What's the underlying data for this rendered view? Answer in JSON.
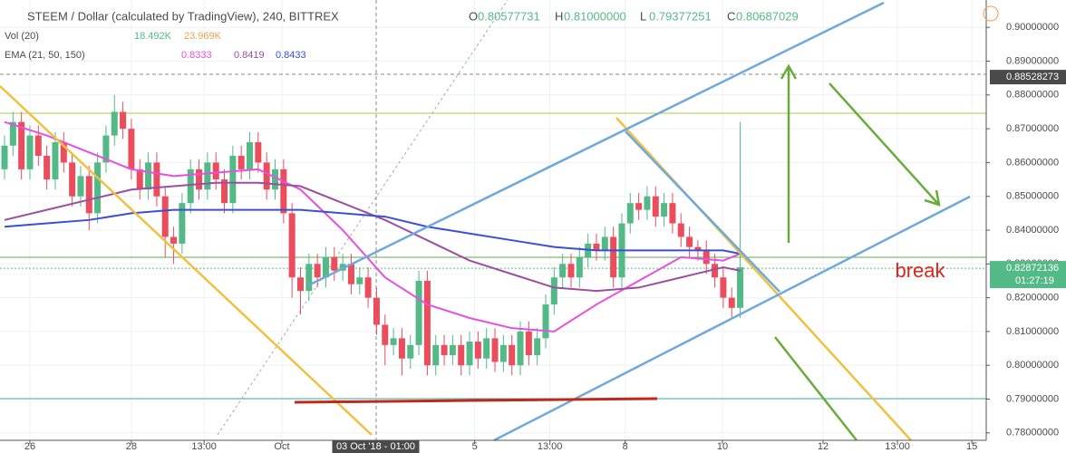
{
  "chart_data": {
    "type": "candlestick",
    "title": "STEEM / Dollar (calculated by TradingView), 240, BITTREX",
    "ohlc_labels": [
      {
        "key": "O",
        "value": "0.80577731"
      },
      {
        "key": "H",
        "value": "0.81000000"
      },
      {
        "key": "L",
        "value": "0.79377251"
      },
      {
        "key": "C",
        "value": "0.80687029"
      }
    ],
    "volume_legend": {
      "label": "Vol (20)",
      "values": [
        "18.492K",
        "23.969K"
      ],
      "colors": [
        "#53b987",
        "#f0a04b"
      ]
    },
    "ema_legend": {
      "label": "EMA (21, 50, 150)",
      "values": [
        "0.8333",
        "0.8419",
        "0.8433"
      ]
    },
    "up_color": "#53b987",
    "down_color": "#eb4d5c",
    "ohlc": [
      [
        0.858,
        0.868,
        0.855,
        0.865
      ],
      [
        0.865,
        0.875,
        0.862,
        0.872
      ],
      [
        0.872,
        0.875,
        0.855,
        0.858
      ],
      [
        0.858,
        0.871,
        0.855,
        0.868
      ],
      [
        0.868,
        0.871,
        0.859,
        0.862
      ],
      [
        0.862,
        0.865,
        0.852,
        0.855
      ],
      [
        0.855,
        0.869,
        0.852,
        0.866
      ],
      [
        0.866,
        0.869,
        0.857,
        0.86
      ],
      [
        0.86,
        0.863,
        0.847,
        0.85
      ],
      [
        0.85,
        0.859,
        0.847,
        0.856
      ],
      [
        0.856,
        0.859,
        0.84,
        0.845
      ],
      [
        0.845,
        0.863,
        0.842,
        0.86
      ],
      [
        0.86,
        0.871,
        0.857,
        0.868
      ],
      [
        0.868,
        0.88,
        0.865,
        0.875
      ],
      [
        0.875,
        0.878,
        0.867,
        0.87
      ],
      [
        0.87,
        0.873,
        0.855,
        0.858
      ],
      [
        0.858,
        0.861,
        0.849,
        0.852
      ],
      [
        0.852,
        0.863,
        0.849,
        0.86
      ],
      [
        0.86,
        0.863,
        0.847,
        0.85
      ],
      [
        0.85,
        0.853,
        0.832,
        0.838
      ],
      [
        0.838,
        0.841,
        0.83,
        0.836
      ],
      [
        0.836,
        0.851,
        0.833,
        0.848
      ],
      [
        0.848,
        0.861,
        0.845,
        0.858
      ],
      [
        0.858,
        0.861,
        0.849,
        0.852
      ],
      [
        0.852,
        0.863,
        0.849,
        0.86
      ],
      [
        0.86,
        0.863,
        0.852,
        0.855
      ],
      [
        0.855,
        0.858,
        0.845,
        0.848
      ],
      [
        0.848,
        0.865,
        0.845,
        0.862
      ],
      [
        0.862,
        0.865,
        0.855,
        0.858
      ],
      [
        0.858,
        0.869,
        0.855,
        0.866
      ],
      [
        0.866,
        0.869,
        0.857,
        0.86
      ],
      [
        0.86,
        0.863,
        0.849,
        0.852
      ],
      [
        0.852,
        0.861,
        0.849,
        0.858
      ],
      [
        0.858,
        0.861,
        0.842,
        0.845
      ],
      [
        0.845,
        0.848,
        0.82,
        0.826
      ],
      [
        0.826,
        0.829,
        0.815,
        0.822
      ],
      [
        0.822,
        0.833,
        0.819,
        0.83
      ],
      [
        0.83,
        0.833,
        0.823,
        0.826
      ],
      [
        0.826,
        0.835,
        0.823,
        0.832
      ],
      [
        0.832,
        0.835,
        0.825,
        0.828
      ],
      [
        0.828,
        0.833,
        0.825,
        0.83
      ],
      [
        0.83,
        0.833,
        0.821,
        0.824
      ],
      [
        0.824,
        0.829,
        0.821,
        0.826
      ],
      [
        0.826,
        0.829,
        0.817,
        0.82
      ],
      [
        0.82,
        0.823,
        0.809,
        0.812
      ],
      [
        0.812,
        0.815,
        0.8,
        0.806
      ],
      [
        0.806,
        0.811,
        0.803,
        0.808
      ],
      [
        0.808,
        0.811,
        0.797,
        0.802
      ],
      [
        0.802,
        0.809,
        0.799,
        0.806
      ],
      [
        0.806,
        0.828,
        0.803,
        0.825
      ],
      [
        0.825,
        0.828,
        0.797,
        0.8
      ],
      [
        0.8,
        0.809,
        0.797,
        0.806
      ],
      [
        0.806,
        0.809,
        0.8,
        0.803
      ],
      [
        0.803,
        0.809,
        0.8,
        0.806
      ],
      [
        0.806,
        0.809,
        0.797,
        0.8
      ],
      [
        0.8,
        0.81,
        0.797,
        0.807
      ],
      [
        0.807,
        0.81,
        0.799,
        0.802
      ],
      [
        0.802,
        0.811,
        0.799,
        0.808
      ],
      [
        0.808,
        0.811,
        0.798,
        0.801
      ],
      [
        0.801,
        0.809,
        0.798,
        0.806
      ],
      [
        0.806,
        0.809,
        0.797,
        0.8
      ],
      [
        0.8,
        0.813,
        0.797,
        0.81
      ],
      [
        0.81,
        0.813,
        0.8,
        0.803
      ],
      [
        0.803,
        0.811,
        0.8,
        0.808
      ],
      [
        0.808,
        0.821,
        0.805,
        0.818
      ],
      [
        0.818,
        0.829,
        0.815,
        0.826
      ],
      [
        0.826,
        0.833,
        0.823,
        0.83
      ],
      [
        0.83,
        0.833,
        0.823,
        0.826
      ],
      [
        0.826,
        0.835,
        0.823,
        0.832
      ],
      [
        0.832,
        0.839,
        0.829,
        0.836
      ],
      [
        0.836,
        0.839,
        0.831,
        0.834
      ],
      [
        0.834,
        0.841,
        0.831,
        0.838
      ],
      [
        0.838,
        0.841,
        0.823,
        0.826
      ],
      [
        0.826,
        0.845,
        0.823,
        0.842
      ],
      [
        0.842,
        0.851,
        0.839,
        0.848
      ],
      [
        0.848,
        0.851,
        0.843,
        0.846
      ],
      [
        0.846,
        0.853,
        0.843,
        0.85
      ],
      [
        0.85,
        0.853,
        0.841,
        0.844
      ],
      [
        0.844,
        0.851,
        0.841,
        0.848
      ],
      [
        0.848,
        0.851,
        0.839,
        0.842
      ],
      [
        0.842,
        0.845,
        0.835,
        0.838
      ],
      [
        0.838,
        0.841,
        0.832,
        0.835
      ],
      [
        0.835,
        0.837,
        0.831,
        0.834
      ],
      [
        0.834,
        0.837,
        0.827,
        0.83
      ],
      [
        0.83,
        0.833,
        0.823,
        0.826
      ],
      [
        0.826,
        0.829,
        0.817,
        0.82
      ],
      [
        0.82,
        0.823,
        0.814,
        0.817
      ],
      [
        0.817,
        0.872,
        0.814,
        0.829
      ]
    ],
    "ema_x": [
      0,
      5,
      10,
      15,
      20,
      25,
      30,
      35,
      40,
      45,
      50,
      55,
      60,
      65,
      70,
      75,
      80,
      85,
      87
    ],
    "ema_lines": [
      {
        "color": "#e650e0",
        "values": [
          0.872,
          0.868,
          0.863,
          0.858,
          0.856,
          0.857,
          0.858,
          0.852,
          0.84,
          0.826,
          0.818,
          0.814,
          0.811,
          0.81,
          0.818,
          0.825,
          0.832,
          0.831,
          0.833
        ]
      },
      {
        "color": "#9b4f9e",
        "values": [
          0.843,
          0.846,
          0.849,
          0.852,
          0.853,
          0.854,
          0.854,
          0.853,
          0.848,
          0.843,
          0.837,
          0.831,
          0.827,
          0.823,
          0.822,
          0.823,
          0.826,
          0.829,
          0.828
        ]
      },
      {
        "color": "#3a4fd6",
        "values": [
          0.841,
          0.842,
          0.843,
          0.845,
          0.846,
          0.846,
          0.846,
          0.846,
          0.845,
          0.844,
          0.841,
          0.839,
          0.837,
          0.835,
          0.834,
          0.834,
          0.834,
          0.834,
          0.833
        ]
      }
    ],
    "xlim": [
      -0.536,
      116.1
    ],
    "xticks": [
      {
        "value": 3,
        "label": "26"
      },
      {
        "value": 15,
        "label": "28"
      },
      {
        "value": 23.6,
        "label": "13:00"
      },
      {
        "value": 32.8,
        "label": "Oct"
      },
      {
        "value": 55.6,
        "label": "5"
      },
      {
        "value": 64.5,
        "label": "13:00"
      },
      {
        "value": 73.4,
        "label": "8"
      },
      {
        "value": 84.9,
        "label": "10"
      },
      {
        "value": 96.8,
        "label": "12"
      },
      {
        "value": 105.6,
        "label": "13:00"
      },
      {
        "value": 114.4,
        "label": "15"
      }
    ],
    "crosshair_x": {
      "value": 43.9,
      "label": "03 Oct '18 - 01:00"
    },
    "ylim": [
      0.7778,
      0.9081
    ],
    "yticks": [
      {
        "value": 0.78,
        "label": "0.78000000"
      },
      {
        "value": 0.79,
        "label": "0.79000000"
      },
      {
        "value": 0.8,
        "label": "0.80000000"
      },
      {
        "value": 0.81,
        "label": "0.81000000"
      },
      {
        "value": 0.82,
        "label": "0.82000000"
      },
      {
        "value": 0.83,
        "label": "0.83000000"
      },
      {
        "value": 0.84,
        "label": "0.84000000"
      },
      {
        "value": 0.85,
        "label": "0.85000000"
      },
      {
        "value": 0.86,
        "label": "0.86000000"
      },
      {
        "value": 0.87,
        "label": "0.87000000"
      },
      {
        "value": 0.88,
        "label": "0.88000000"
      },
      {
        "value": 0.89,
        "label": "0.89000000"
      },
      {
        "value": 0.9,
        "label": "0.90000000"
      }
    ],
    "crosshair_price": 0.88528273,
    "last_price": 0.82872136,
    "countdown": "01:27:19",
    "annotation": "break",
    "grid": true
  }
}
